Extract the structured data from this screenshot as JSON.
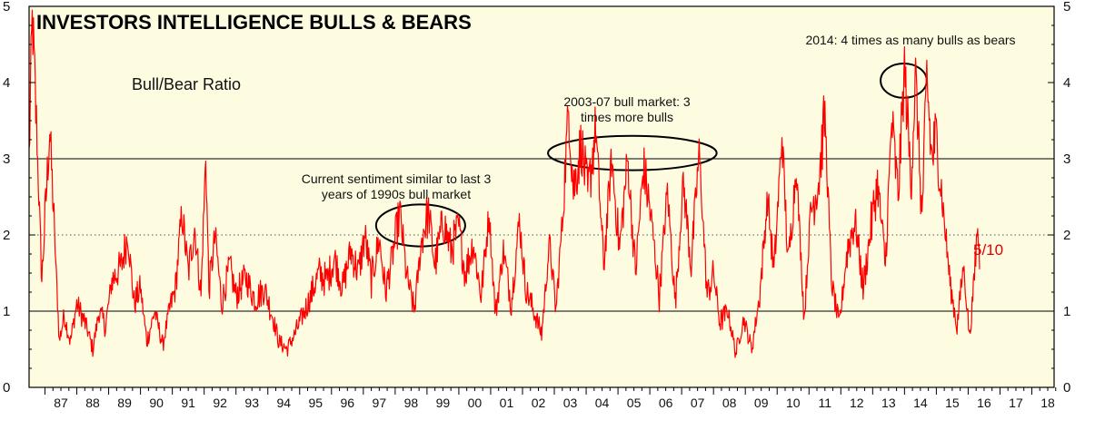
{
  "chart_data": {
    "type": "line",
    "title": "INVESTORS INTELLIGENCE BULLS & BEARS",
    "subtitle": "Bull/Bear Ratio",
    "ylim": [
      0,
      5
    ],
    "y_ticks": [
      "0",
      "1",
      "2",
      "3",
      "4",
      "5"
    ],
    "x_range": [
      1986.5,
      2018.7
    ],
    "x_ticks": [
      "87",
      "88",
      "89",
      "90",
      "91",
      "92",
      "93",
      "94",
      "95",
      "96",
      "97",
      "98",
      "99",
      "00",
      "01",
      "02",
      "03",
      "04",
      "05",
      "06",
      "07",
      "08",
      "09",
      "10",
      "11",
      "12",
      "13",
      "14",
      "15",
      "16",
      "17",
      "18"
    ],
    "solid_gridlines": [
      1,
      3
    ],
    "dotted_gridlines": [
      2
    ],
    "last_value_label": "5/10",
    "colors": {
      "line": "#ff0000",
      "plot_bg": "#fdfce0",
      "label": "#e00000"
    },
    "annotations": [
      {
        "lines": [
          "Current sentiment similar to last 3",
          "years of 1990s bull market"
        ]
      },
      {
        "lines": [
          "2003-07 bull market: 3",
          "times more bulls"
        ]
      },
      {
        "lines": [
          "2014: 4 times as many bulls as bears"
        ]
      }
    ],
    "highlight_ellipses": [
      {
        "x_range": [
          1997.4,
          2000.2
        ],
        "y_range": [
          1.85,
          2.4
        ]
      },
      {
        "x_range": [
          2002.8,
          2008.1
        ],
        "y_range": [
          2.85,
          3.3
        ]
      },
      {
        "x_range": [
          2013.25,
          2014.7
        ],
        "y_range": [
          3.8,
          4.25
        ]
      }
    ],
    "anchors": [
      [
        1986.5,
        3.0
      ],
      [
        1986.6,
        4.9
      ],
      [
        1986.75,
        3.2
      ],
      [
        1986.9,
        1.4
      ],
      [
        1987.0,
        2.2
      ],
      [
        1987.15,
        3.4
      ],
      [
        1987.3,
        2.0
      ],
      [
        1987.45,
        0.6
      ],
      [
        1987.6,
        0.95
      ],
      [
        1987.8,
        0.6
      ],
      [
        1988.0,
        1.1
      ],
      [
        1988.3,
        0.8
      ],
      [
        1988.5,
        0.5
      ],
      [
        1988.7,
        1.0
      ],
      [
        1988.9,
        0.8
      ],
      [
        1989.1,
        1.4
      ],
      [
        1989.4,
        1.6
      ],
      [
        1989.6,
        2.0
      ],
      [
        1989.8,
        1.1
      ],
      [
        1990.0,
        1.3
      ],
      [
        1990.2,
        0.6
      ],
      [
        1990.45,
        1.0
      ],
      [
        1990.7,
        0.55
      ],
      [
        1990.9,
        1.0
      ],
      [
        1991.1,
        1.3
      ],
      [
        1991.3,
        2.3
      ],
      [
        1991.5,
        1.5
      ],
      [
        1991.7,
        2.1
      ],
      [
        1991.9,
        1.2
      ],
      [
        1992.05,
        3.05
      ],
      [
        1992.15,
        1.3
      ],
      [
        1992.35,
        2.0
      ],
      [
        1992.55,
        1.1
      ],
      [
        1992.8,
        1.6
      ],
      [
        1993.0,
        1.2
      ],
      [
        1993.3,
        1.45
      ],
      [
        1993.6,
        1.15
      ],
      [
        1993.9,
        1.3
      ],
      [
        1994.1,
        1.0
      ],
      [
        1994.35,
        0.6
      ],
      [
        1994.6,
        0.5
      ],
      [
        1994.85,
        0.7
      ],
      [
        1995.1,
        0.95
      ],
      [
        1995.35,
        1.2
      ],
      [
        1995.6,
        1.5
      ],
      [
        1995.85,
        1.4
      ],
      [
        1996.1,
        1.7
      ],
      [
        1996.35,
        1.3
      ],
      [
        1996.6,
        1.8
      ],
      [
        1996.85,
        1.5
      ],
      [
        1997.05,
        2.0
      ],
      [
        1997.25,
        1.4
      ],
      [
        1997.5,
        1.95
      ],
      [
        1997.7,
        1.25
      ],
      [
        1997.95,
        1.8
      ],
      [
        1998.15,
        2.3
      ],
      [
        1998.35,
        1.5
      ],
      [
        1998.6,
        1.0
      ],
      [
        1998.85,
        2.0
      ],
      [
        1999.05,
        2.3
      ],
      [
        1999.25,
        1.6
      ],
      [
        1999.5,
        2.2
      ],
      [
        1999.75,
        1.8
      ],
      [
        2000.0,
        2.1
      ],
      [
        2000.2,
        1.5
      ],
      [
        2000.45,
        1.9
      ],
      [
        2000.7,
        1.2
      ],
      [
        2000.95,
        2.3
      ],
      [
        2001.15,
        0.95
      ],
      [
        2001.4,
        1.8
      ],
      [
        2001.65,
        1.1
      ],
      [
        2001.9,
        2.2
      ],
      [
        2002.1,
        1.3
      ],
      [
        2002.35,
        1.0
      ],
      [
        2002.6,
        0.7
      ],
      [
        2002.85,
        1.9
      ],
      [
        2003.05,
        1.0
      ],
      [
        2003.25,
        2.2
      ],
      [
        2003.45,
        3.7
      ],
      [
        2003.6,
        2.6
      ],
      [
        2003.85,
        3.2
      ],
      [
        2004.05,
        2.5
      ],
      [
        2004.3,
        3.4
      ],
      [
        2004.55,
        1.6
      ],
      [
        2004.8,
        3.0
      ],
      [
        2005.05,
        1.8
      ],
      [
        2005.3,
        3.0
      ],
      [
        2005.55,
        1.5
      ],
      [
        2005.8,
        2.9
      ],
      [
        2006.05,
        2.2
      ],
      [
        2006.3,
        1.2
      ],
      [
        2006.55,
        2.6
      ],
      [
        2006.8,
        1.1
      ],
      [
        2007.05,
        2.7
      ],
      [
        2007.3,
        1.6
      ],
      [
        2007.55,
        3.1
      ],
      [
        2007.8,
        1.2
      ],
      [
        2008.0,
        1.5
      ],
      [
        2008.2,
        0.85
      ],
      [
        2008.45,
        1.0
      ],
      [
        2008.7,
        0.45
      ],
      [
        2008.95,
        0.9
      ],
      [
        2009.2,
        0.5
      ],
      [
        2009.45,
        1.2
      ],
      [
        2009.7,
        2.5
      ],
      [
        2009.9,
        1.5
      ],
      [
        2010.15,
        3.3
      ],
      [
        2010.35,
        1.6
      ],
      [
        2010.6,
        2.9
      ],
      [
        2010.85,
        0.9
      ],
      [
        2011.05,
        2.3
      ],
      [
        2011.3,
        2.7
      ],
      [
        2011.5,
        3.6
      ],
      [
        2011.7,
        1.4
      ],
      [
        2011.95,
        0.8
      ],
      [
        2012.2,
        1.8
      ],
      [
        2012.45,
        2.2
      ],
      [
        2012.7,
        1.3
      ],
      [
        2012.95,
        2.1
      ],
      [
        2013.15,
        2.7
      ],
      [
        2013.4,
        1.6
      ],
      [
        2013.6,
        3.5
      ],
      [
        2013.8,
        2.5
      ],
      [
        2014.0,
        4.2
      ],
      [
        2014.2,
        2.7
      ],
      [
        2014.35,
        4.1
      ],
      [
        2014.55,
        2.2
      ],
      [
        2014.7,
        4.1
      ],
      [
        2014.85,
        3.0
      ],
      [
        2015.0,
        3.3
      ],
      [
        2015.2,
        2.4
      ],
      [
        2015.45,
        1.3
      ],
      [
        2015.65,
        0.8
      ],
      [
        2015.85,
        1.6
      ],
      [
        2016.05,
        0.65
      ],
      [
        2016.2,
        1.5
      ],
      [
        2016.3,
        2.15
      ],
      [
        2016.36,
        1.55
      ]
    ]
  }
}
